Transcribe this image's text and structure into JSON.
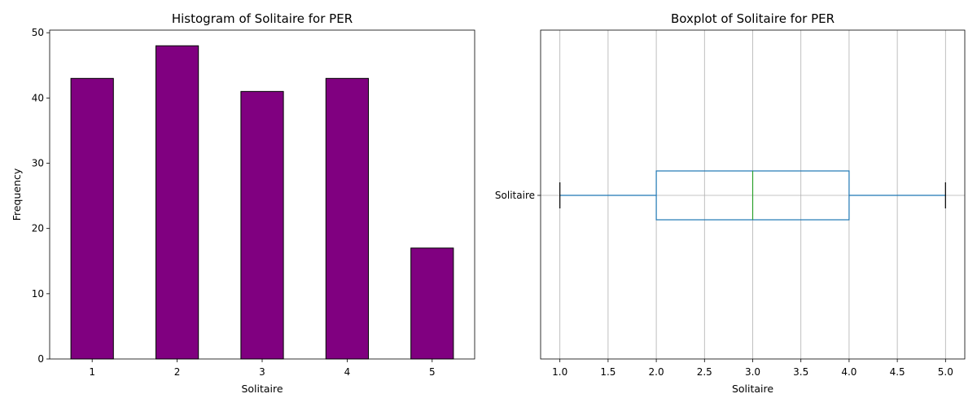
{
  "chart_data": [
    {
      "type": "bar",
      "title": "Histogram of Solitaire for PER",
      "xlabel": "Solitaire",
      "ylabel": "Frequency",
      "categories": [
        "1",
        "2",
        "3",
        "4",
        "5"
      ],
      "values": [
        43,
        48,
        41,
        43,
        17
      ],
      "ylim": [
        0,
        50.4
      ],
      "yticks": [
        0,
        10,
        20,
        30,
        40,
        50
      ],
      "bar_color": "#800080",
      "edge_color": "#000000",
      "grid": false
    },
    {
      "type": "box",
      "orientation": "horizontal",
      "title": "Boxplot of Solitaire for PER",
      "xlabel": "Solitaire",
      "category_label": "Solitaire",
      "whisker_low": 1.0,
      "q1": 2.0,
      "median": 3.0,
      "q3": 4.0,
      "whisker_high": 5.0,
      "xlim": [
        0.8,
        5.2
      ],
      "xticks": [
        "1.0",
        "1.5",
        "2.0",
        "2.5",
        "3.0",
        "3.5",
        "4.0",
        "4.5",
        "5.0"
      ],
      "box_color": "#1f77b4",
      "median_color": "#2ca02c",
      "cap_color": "#000000",
      "grid": true
    }
  ]
}
